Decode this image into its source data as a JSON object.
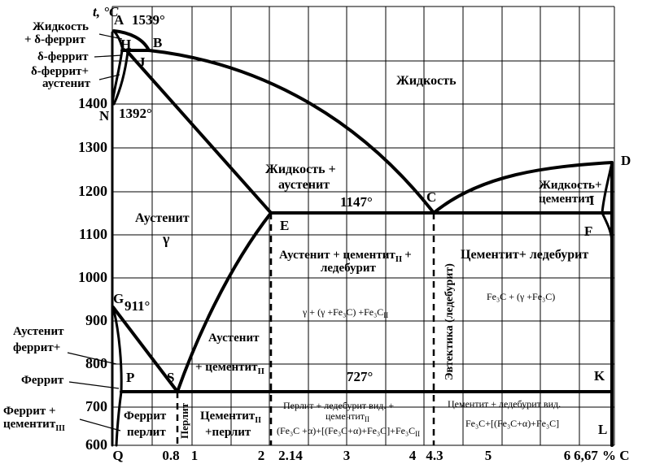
{
  "axis": {
    "y_title": "t, °C",
    "y_ticks": [
      "600",
      "700",
      "800",
      "900",
      "1000",
      "1100",
      "1200",
      "1300",
      "1400"
    ],
    "x_title": "% C",
    "x_ticks": [
      "Q",
      "0.8",
      "1",
      "2",
      "2.14",
      "3",
      "4",
      "4.3",
      "5",
      "6",
      "6,67"
    ]
  },
  "points": {
    "A": "A",
    "B": "B",
    "H": "H",
    "J": "J",
    "N": "N",
    "E": "E",
    "C": "C",
    "D": "D",
    "F": "F",
    "I": "I",
    "G": "G",
    "P": "P",
    "S": "S",
    "K": "K",
    "L": "L"
  },
  "temperatures": {
    "t1539": "1539°",
    "t1392": "1392°",
    "t1147": "1147°",
    "t911": "911°",
    "t727": "727°"
  },
  "regions": {
    "liquid": "Жидкость",
    "liquid_delta_1": "Жидкость",
    "liquid_delta_2": "+ δ-феррит",
    "delta_ferrite": "δ-феррит",
    "delta_aust_1": "δ-феррит+",
    "delta_aust_2": "аустенит",
    "liquid_aust_1": "Жидкость +",
    "liquid_aust_2": "аустенит",
    "liquid_cem_1": "Жидкость+",
    "liquid_cem_2": "цементит",
    "austenite": "Аустенит",
    "gamma": "γ",
    "aust_cem_led_1": "Аустенит + цементит",
    "aust_cem_led_sub": "II",
    "aust_cem_led_plus": "+",
    "aust_cem_led_2": "ледебурит",
    "aust_cem_led_formula": "γ + (γ +Fe₃C) +Fe₃C",
    "aust_cem_led_formula_sub": "II",
    "cem_led": "Цементит+ ледебурит",
    "cem_led_formula": "Fe₃C + (γ +Fe₃C)",
    "eutectic": "Эвтектика (ледебурит)",
    "aust_cem_1": "Аустенит",
    "aust_cem_2": "+ цементит",
    "aust_cem_sub": "II",
    "aust_ferr_1": "Аустенит",
    "aust_ferr_2": "феррит+",
    "ferrite": "Феррит",
    "ferr_cem_1": "Феррит +",
    "ferr_cem_2": "цементит",
    "ferr_cem_sub": "III",
    "ferr_pearl_1": "Феррит",
    "ferr_pearl_2": "перлит",
    "pearlite": "Перлит",
    "cem_pearl_1": "Цементит",
    "cem_pearl_sub": "II",
    "cem_pearl_2": "+перлит",
    "pl_1": "Перлит + ледебурит вид. +",
    "pl_2": "цементит",
    "pl_2_sub": "II",
    "pl_3": "(Fe₃C +α)+[(Fe₃C+α)+Fe₃C]+Fe₃C",
    "pl_3_sub": "II",
    "cl_1": "Цементит + ледебурит вид.",
    "cl_2": "Fe₃C+[(Fe₃C+α)+Fe₃C]"
  }
}
